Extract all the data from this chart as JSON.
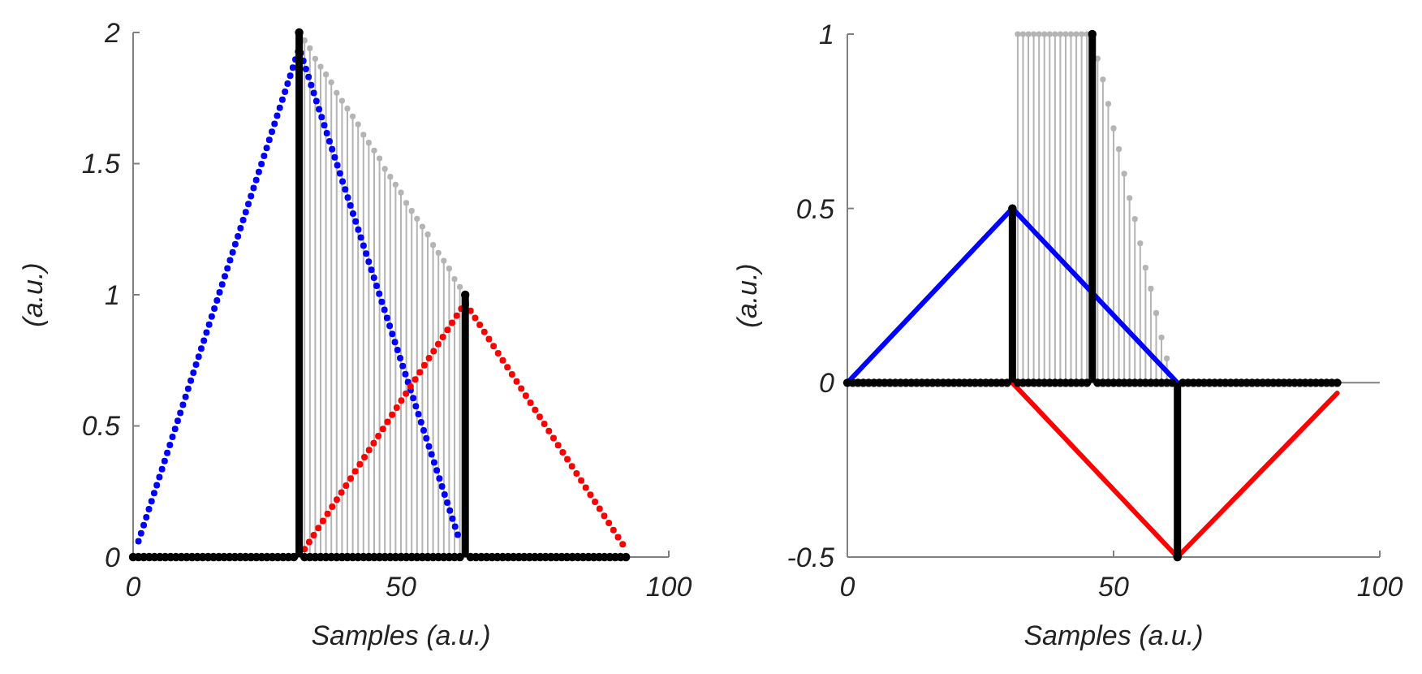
{
  "chart_data": [
    {
      "type": "line",
      "xlabel": "Samples (a.u.)",
      "ylabel": "(a.u.)",
      "xlim": [
        0,
        100
      ],
      "ylim": [
        0,
        2
      ],
      "xticks": [
        0,
        50,
        100
      ],
      "yticks": [
        0,
        0.5,
        1,
        1.5,
        2
      ],
      "series": [
        {
          "type": "lollipop",
          "color": "#b4b4b4",
          "x": [
            32,
            33,
            34,
            35,
            36,
            37,
            38,
            39,
            40,
            41,
            42,
            43,
            44,
            45,
            46,
            47,
            48,
            49,
            50,
            51,
            52,
            53,
            54,
            55,
            56,
            57,
            58,
            59,
            60,
            61
          ],
          "values": [
            1.97,
            1.94,
            1.9,
            1.87,
            1.84,
            1.81,
            1.77,
            1.74,
            1.71,
            1.68,
            1.65,
            1.61,
            1.58,
            1.55,
            1.52,
            1.48,
            1.45,
            1.42,
            1.39,
            1.35,
            1.32,
            1.29,
            1.26,
            1.23,
            1.19,
            1.16,
            1.13,
            1.1,
            1.06,
            1.03
          ]
        },
        {
          "color": "#0000ff",
          "line_style": "dotted",
          "marker": "none",
          "x": [
            1,
            31,
            61
          ],
          "values": [
            0.06,
            1.94,
            0.06
          ]
        },
        {
          "color": "#ff0000",
          "line_style": "dotted",
          "marker": "none",
          "x": [
            32,
            62,
            92
          ],
          "values": [
            0.03,
            0.97,
            0.03
          ]
        },
        {
          "type": "lollipop",
          "color": "#000000",
          "x": [
            0,
            1,
            2,
            3,
            4,
            5,
            6,
            7,
            8,
            9,
            10,
            11,
            12,
            13,
            14,
            15,
            16,
            17,
            18,
            19,
            20,
            21,
            22,
            23,
            24,
            25,
            26,
            27,
            28,
            29,
            30,
            31,
            32,
            33,
            34,
            35,
            36,
            37,
            38,
            39,
            40,
            41,
            42,
            43,
            44,
            45,
            46,
            47,
            48,
            49,
            50,
            51,
            52,
            53,
            54,
            55,
            56,
            57,
            58,
            59,
            60,
            61,
            62,
            63,
            64,
            65,
            66,
            67,
            68,
            69,
            70,
            71,
            72,
            73,
            74,
            75,
            76,
            77,
            78,
            79,
            80,
            81,
            82,
            83,
            84,
            85,
            86,
            87,
            88,
            89,
            90,
            91,
            92
          ],
          "values": [
            0,
            0,
            0,
            0,
            0,
            0,
            0,
            0,
            0,
            0,
            0,
            0,
            0,
            0,
            0,
            0,
            0,
            0,
            0,
            0,
            0,
            0,
            0,
            0,
            0,
            0,
            0,
            0,
            0,
            0,
            0,
            2,
            0,
            0,
            0,
            0,
            0,
            0,
            0,
            0,
            0,
            0,
            0,
            0,
            0,
            0,
            0,
            0,
            0,
            0,
            0,
            0,
            0,
            0,
            0,
            0,
            0,
            0,
            0,
            0,
            0,
            0,
            1,
            0,
            0,
            0,
            0,
            0,
            0,
            0,
            0,
            0,
            0,
            0,
            0,
            0,
            0,
            0,
            0,
            0,
            0,
            0,
            0,
            0,
            0,
            0,
            0,
            0,
            0,
            0,
            0,
            0,
            0
          ]
        }
      ]
    },
    {
      "type": "line",
      "xlabel": "Samples (a.u.)",
      "ylabel": "(a.u.)",
      "xlim": [
        0,
        100
      ],
      "ylim": [
        -0.5,
        1
      ],
      "xticks": [
        0,
        50,
        100
      ],
      "yticks": [
        -0.5,
        0,
        0.5,
        1
      ],
      "ref_lines": [
        {
          "axis": "y",
          "value": 0,
          "color": "#808080"
        }
      ],
      "series": [
        {
          "type": "lollipop",
          "color": "#b4b4b4",
          "x": [
            32,
            33,
            34,
            35,
            36,
            37,
            38,
            39,
            40,
            41,
            42,
            43,
            44,
            45,
            47,
            48,
            49,
            50,
            51,
            52,
            53,
            54,
            55,
            56,
            57,
            58,
            59,
            60
          ],
          "values": [
            1,
            1,
            1,
            1,
            1,
            1,
            1,
            1,
            1,
            1,
            1,
            1,
            1,
            1,
            0.93,
            0.87,
            0.8,
            0.73,
            0.67,
            0.6,
            0.53,
            0.47,
            0.4,
            0.33,
            0.27,
            0.2,
            0.13,
            0.07
          ]
        },
        {
          "color": "#0000ff",
          "line_style": "solid",
          "marker": "none",
          "x": [
            0,
            31,
            62
          ],
          "values": [
            0,
            0.5,
            0
          ]
        },
        {
          "color": "#ff0000",
          "line_style": "solid",
          "marker": "none",
          "x": [
            31,
            62,
            92
          ],
          "values": [
            0,
            -0.5,
            -0.03
          ]
        },
        {
          "type": "lollipop",
          "color": "#000000",
          "x": [
            0,
            1,
            2,
            3,
            4,
            5,
            6,
            7,
            8,
            9,
            10,
            11,
            12,
            13,
            14,
            15,
            16,
            17,
            18,
            19,
            20,
            21,
            22,
            23,
            24,
            25,
            26,
            27,
            28,
            29,
            30,
            31,
            32,
            33,
            34,
            35,
            36,
            37,
            38,
            39,
            40,
            41,
            42,
            43,
            44,
            45,
            46,
            47,
            48,
            49,
            50,
            51,
            52,
            53,
            54,
            55,
            56,
            57,
            58,
            59,
            60,
            61,
            62,
            63,
            64,
            65,
            66,
            67,
            68,
            69,
            70,
            71,
            72,
            73,
            74,
            75,
            76,
            77,
            78,
            79,
            80,
            81,
            82,
            83,
            84,
            85,
            86,
            87,
            88,
            89,
            90,
            91,
            92
          ],
          "values": [
            0,
            0,
            0,
            0,
            0,
            0,
            0,
            0,
            0,
            0,
            0,
            0,
            0,
            0,
            0,
            0,
            0,
            0,
            0,
            0,
            0,
            0,
            0,
            0,
            0,
            0,
            0,
            0,
            0,
            0,
            0,
            0.5,
            0,
            0,
            0,
            0,
            0,
            0,
            0,
            0,
            0,
            0,
            0,
            0,
            0,
            0,
            1,
            0,
            0,
            0,
            0,
            0,
            0,
            0,
            0,
            0,
            0,
            0,
            0,
            0,
            0,
            0,
            -0.5,
            0,
            0,
            0,
            0,
            0,
            0,
            0,
            0,
            0,
            0,
            0,
            0,
            0,
            0,
            0,
            0,
            0,
            0,
            0,
            0,
            0,
            0,
            0,
            0,
            0,
            0,
            0,
            0,
            0,
            0
          ]
        }
      ]
    }
  ]
}
